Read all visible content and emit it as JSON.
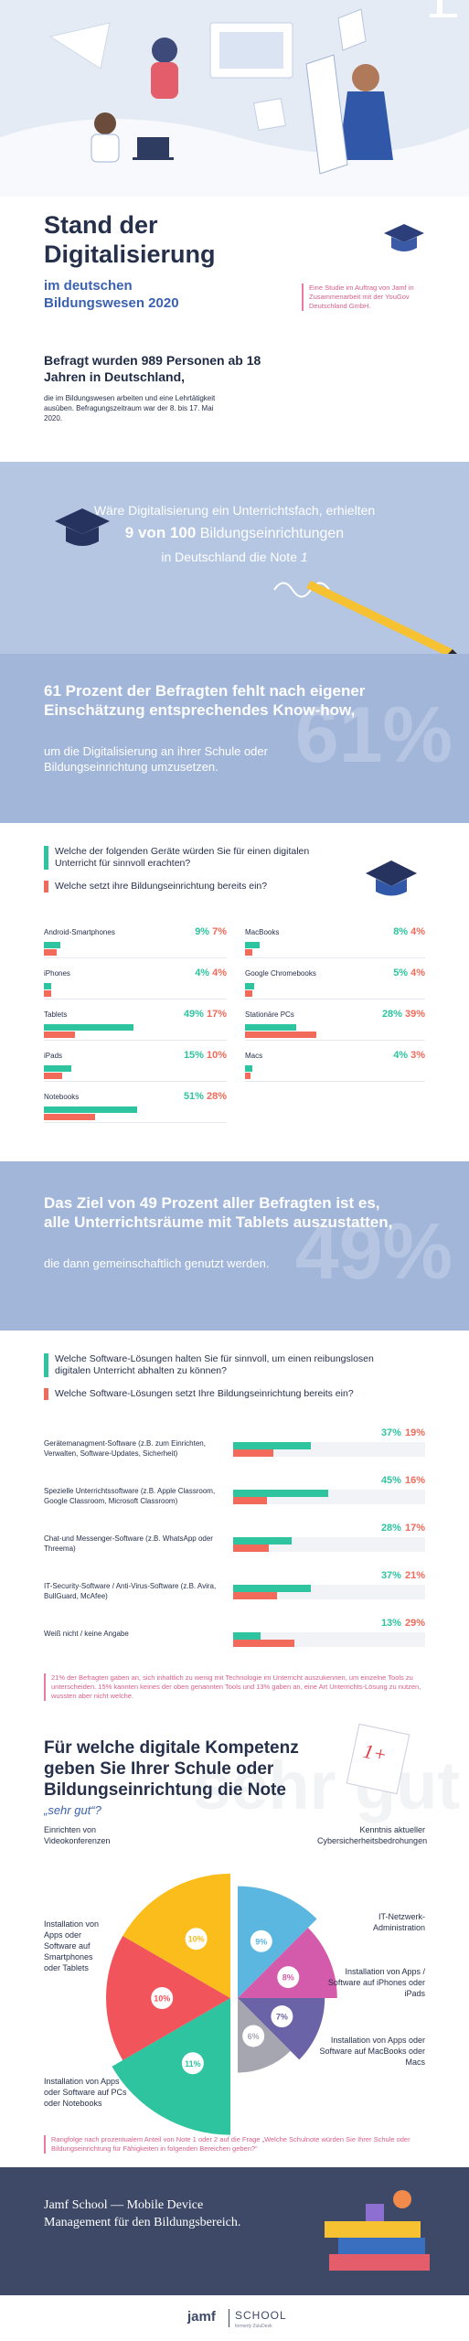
{
  "header": {
    "title": "Stand der Digitalisierung",
    "subtitle": "im deutschen Bildungswesen 2020",
    "study_note": "Eine Studie im Auftrag von Jamf in Zusammenarbeit mit der YouGov Deutschland GmbH.",
    "respondents": "Befragt wurden 989 Personen ab 18 Jahren in Deutschland,",
    "respondents_detail": "die im Bildungswesen arbeiten und eine Lehrtätigkeit ausüben. Befragungszeitraum war der 8. bis 17. Mai 2020."
  },
  "grade_band": {
    "line1": "Wäre Digitalisierung ein Unterrichtsfach, erhielten",
    "highlight_number": "9 von 100",
    "highlight_rest": "Bildungseinrichtungen",
    "line3": "in Deutschland die Note",
    "grade": "1"
  },
  "knowhow_band": {
    "bold": "61 Prozent der Befragten fehlt nach eigener Einschätzung entsprechendes Know-how,",
    "normal": "um die Digitalisierung an ihrer Schule oder Bildungseinrichtung umzusetzen.",
    "watermark": "61%"
  },
  "devices": {
    "colors": [
      "#2ec49f",
      "#f26a5a"
    ],
    "legend": [
      "Welche der folgenden Geräte würden Sie für einen digitalen Unterricht für sinnvoll erachten?",
      "Welche setzt ihre Bildungseinrichtung bereits ein?"
    ],
    "columns": [
      [
        {
          "label": "Android-Smartphones",
          "values": [
            9,
            7
          ],
          "value_labels": [
            "9%",
            "7%"
          ]
        },
        {
          "label": "iPhones",
          "values": [
            4,
            4
          ],
          "value_labels": [
            "4%",
            "4%"
          ]
        },
        {
          "label": "Tablets",
          "values": [
            49,
            17
          ],
          "value_labels": [
            "49%",
            "17%"
          ]
        },
        {
          "label": "iPads",
          "values": [
            15,
            10
          ],
          "value_labels": [
            "15%",
            "10%"
          ]
        },
        {
          "label": "Notebooks",
          "values": [
            51,
            28
          ],
          "value_labels": [
            "51%",
            "28%"
          ]
        }
      ],
      [
        {
          "label": "MacBooks",
          "values": [
            8,
            4
          ],
          "value_labels": [
            "8%",
            "4%"
          ]
        },
        {
          "label": "Google Chromebooks",
          "values": [
            5,
            4
          ],
          "value_labels": [
            "5%",
            "4%"
          ]
        },
        {
          "label": "Stationäre PCs",
          "values": [
            28,
            39
          ],
          "value_labels": [
            "28%",
            "39%"
          ]
        },
        {
          "label": "Macs",
          "values": [
            4,
            3
          ],
          "value_labels": [
            "4%",
            "3%"
          ]
        }
      ]
    ]
  },
  "tablet_band": {
    "bold": "Das Ziel von 49 Prozent aller Befragten ist es, alle Unterrichtsräume mit Tablets auszustatten,",
    "normal": "die dann gemeinschaftlich genutzt werden.",
    "watermark": "49%"
  },
  "software": {
    "colors": [
      "#2ec49f",
      "#f26a5a"
    ],
    "legend": [
      "Welche Software-Lösungen halten Sie für sinnvoll, um einen reibungslosen digitalen Unterricht abhalten zu können?",
      "Welche Software-Lösungen setzt Ihre Bildungseinrichtung bereits ein?"
    ],
    "items": [
      {
        "label": "Gerätemanagment-Software (z.B. zum Einrichten, Verwalten, Software-Updates, Sicherheit)",
        "values": [
          37,
          19
        ],
        "value_labels": [
          "37%",
          "19%"
        ]
      },
      {
        "label": "Spezielle Unterrichtssoftware (z.B. Apple Classroom, Google Classroom, Microsoft Classroom)",
        "values": [
          45,
          16
        ],
        "value_labels": [
          "45%",
          "16%"
        ]
      },
      {
        "label": "Chat-und Messenger-Software (z.B. WhatsApp oder Threema)",
        "values": [
          28,
          17
        ],
        "value_labels": [
          "28%",
          "17%"
        ]
      },
      {
        "label": "IT-Security-Software / Anti-Virus-Software (z.B. Avira, BullGuard, McAfee)",
        "values": [
          37,
          21
        ],
        "value_labels": [
          "37%",
          "21%"
        ]
      },
      {
        "label": "Weiß nicht / keine Angabe",
        "values": [
          13,
          29
        ],
        "value_labels": [
          "13%",
          "29%"
        ]
      }
    ],
    "footnote": "21% der Befragten gaben an, sich inhaltlich zu wenig mit Technologie im Unterricht auszukennen, um einzelne Tools zu unterscheiden. 15% kannten keines der oben genannten Tools und 13% gaben an, eine Art Unterrichts-Lösung zu nutzen, wussten aber nicht welche."
  },
  "competence": {
    "title": "Für welche digitale Kompetenz geben Sie Ihrer Schule oder Bildungseinrichtung die Note",
    "quote": "„sehr gut“?",
    "watermark": "sehr gut",
    "badge": "1+",
    "left": [
      {
        "label": "Einrichten von Videokonferenzen",
        "value": 11,
        "value_label": "11%",
        "color": "#2ec49f"
      },
      {
        "label": "Installation von Apps oder Software auf Smartphones oder Tablets",
        "value": 10,
        "value_label": "10%",
        "color": "#f2545b"
      },
      {
        "label": "Installation von Apps oder Software auf PCs oder Notebooks",
        "value": 10,
        "value_label": "10%",
        "color": "#fbbd1c"
      }
    ],
    "right": [
      {
        "label": "Kenntnis aktueller Cybersicherheitsbedrohungen",
        "value": 9,
        "value_label": "9%",
        "color": "#5bb6e0"
      },
      {
        "label": "IT-Netzwerk-Administration",
        "value": 8,
        "value_label": "8%",
        "color": "#d45bab"
      },
      {
        "label": "Installation von Apps / Software auf iPhones oder iPads",
        "value": 7,
        "value_label": "7%",
        "color": "#6a63a8"
      },
      {
        "label": "Installation von Apps oder Software auf MacBooks oder Macs",
        "value": 6,
        "value_label": "6%",
        "color": "#a6a6b0"
      }
    ],
    "footnote": "Rangfolge nach prozentualem Anteil von Note 1 oder 2 auf die Frage „Welche Schulnote würden Sie Ihrer Schule oder Bildungseinrichtung für Fähigkeiten in folgenden Bereichen geben?“"
  },
  "footer": {
    "text": "Jamf School — Mobile Device Management für den Bildungsbereich.",
    "brand": "jamf",
    "product": "SCHOOL",
    "product_note": "formerly ZuluDesk"
  }
}
